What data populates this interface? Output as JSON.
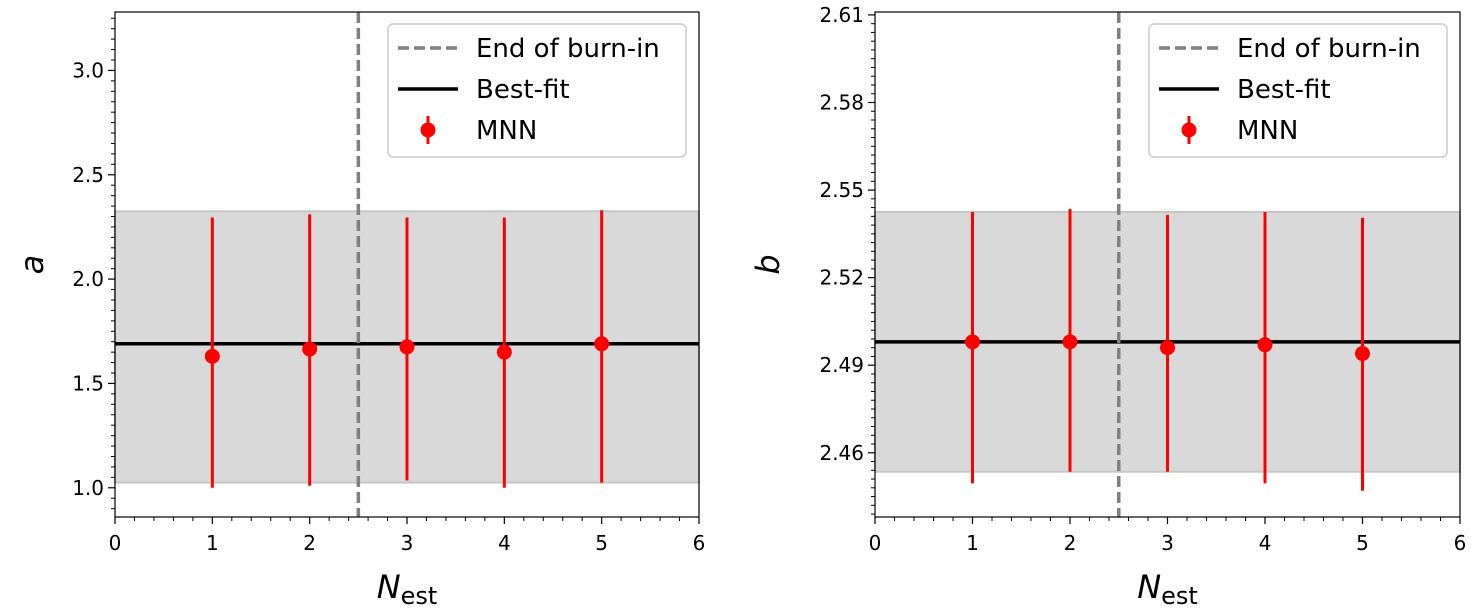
{
  "chart_data": [
    {
      "type": "scatter",
      "xlabel": "N",
      "xlabel_subscript": "est",
      "ylabel": "a",
      "xlim": [
        0,
        6
      ],
      "ylim": [
        0.86,
        3.28
      ],
      "x_ticks": [
        0,
        1,
        2,
        3,
        4,
        5,
        6
      ],
      "y_ticks": [
        1.0,
        1.5,
        2.0,
        2.5,
        3.0
      ],
      "y_tick_labels": [
        "1.0",
        "1.5",
        "2.0",
        "2.5",
        "3.0"
      ],
      "burn_in_x": 2.5,
      "best_fit": 1.69,
      "band": [
        1.025,
        2.325
      ],
      "series": [
        {
          "name": "MNN",
          "color": "#ff0000",
          "x": [
            1,
            2,
            3,
            4,
            5
          ],
          "y": [
            1.63,
            1.665,
            1.675,
            1.65,
            1.69
          ],
          "err_low": [
            1.0,
            1.01,
            1.035,
            1.0,
            1.025
          ],
          "err_high": [
            2.295,
            2.31,
            2.295,
            2.295,
            2.33
          ]
        }
      ],
      "legend": {
        "placement": "top-right",
        "entries": [
          "End of burn-in",
          "Best-fit",
          "MNN"
        ]
      }
    },
    {
      "type": "scatter",
      "xlabel": "N",
      "xlabel_subscript": "est",
      "ylabel": "b",
      "xlim": [
        0,
        6
      ],
      "ylim": [
        2.438,
        2.611
      ],
      "x_ticks": [
        0,
        1,
        2,
        3,
        4,
        5,
        6
      ],
      "y_ticks": [
        2.46,
        2.49,
        2.52,
        2.55,
        2.58,
        2.61
      ],
      "y_tick_labels": [
        "2.46",
        "2.49",
        "2.52",
        "2.55",
        "2.58",
        "2.61"
      ],
      "burn_in_x": 2.5,
      "best_fit": 2.498,
      "band": [
        2.4535,
        2.5425
      ],
      "series": [
        {
          "name": "MNN",
          "color": "#ff0000",
          "x": [
            1,
            2,
            3,
            4,
            5
          ],
          "y": [
            2.498,
            2.498,
            2.496,
            2.497,
            2.494
          ],
          "err_low": [
            2.4495,
            2.4535,
            2.4535,
            2.4495,
            2.447
          ],
          "err_high": [
            2.5425,
            2.5435,
            2.5415,
            2.5425,
            2.5405
          ]
        }
      ],
      "legend": {
        "placement": "top-right",
        "entries": [
          "End of burn-in",
          "Best-fit",
          "MNN"
        ]
      }
    }
  ]
}
